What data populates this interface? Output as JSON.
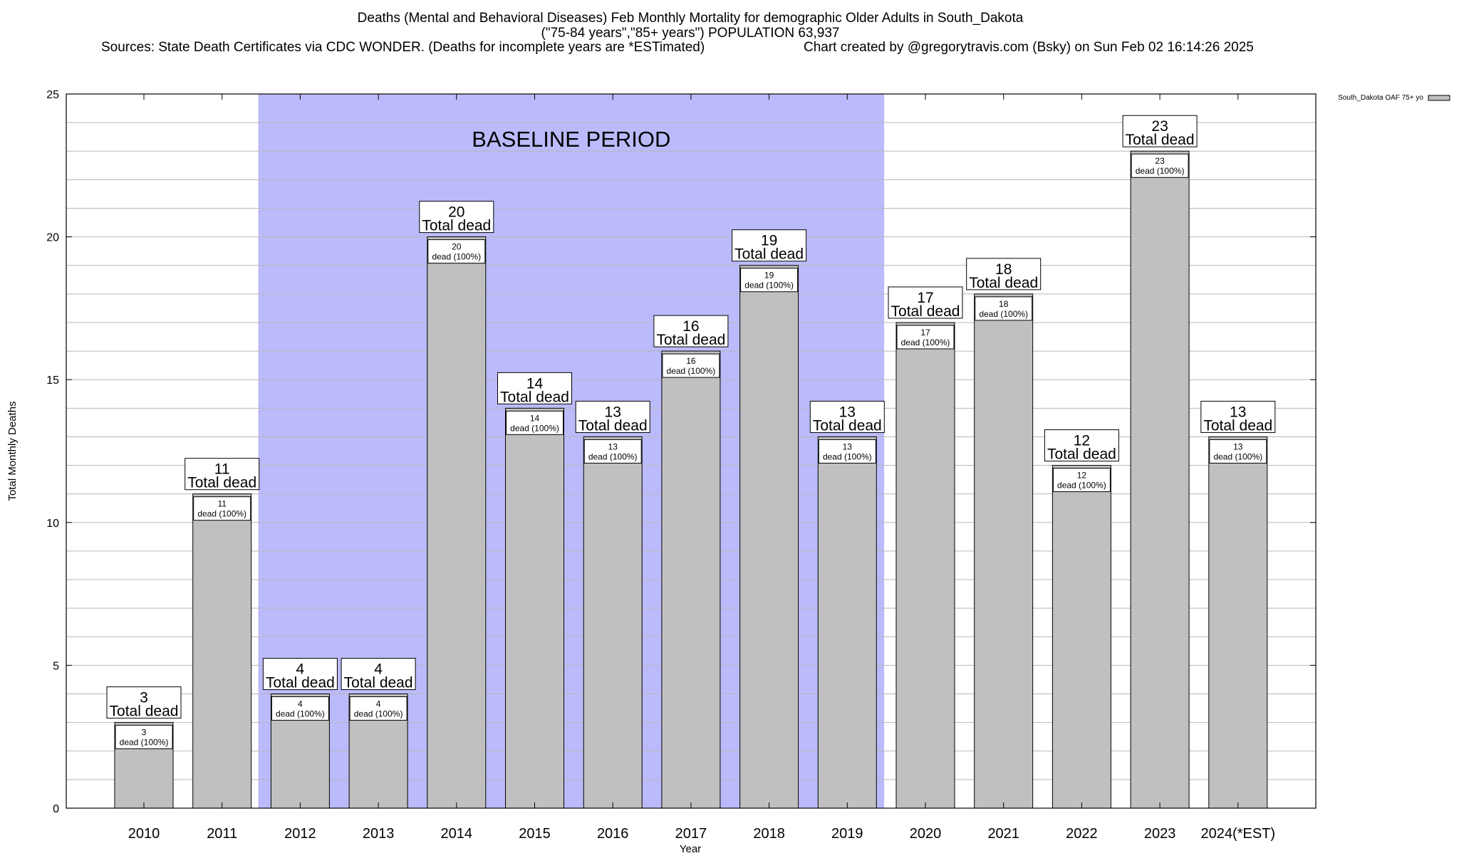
{
  "colors": {
    "bar_fill": "#c0c0c0",
    "baseline_fill": "#bbbbfb",
    "grid": "#b8b8b8",
    "label_box_fill": "#ffffff",
    "legend_swatch": "#c0c0c0"
  },
  "chart_data": {
    "type": "bar",
    "title_line1": "Deaths (Mental and Behavioral Diseases) Feb Monthly Mortality for demographic Older Adults in South_Dakota",
    "title_line2": "(\"75-84 years\",\"85+ years\") POPULATION 63,937",
    "title_line3_left": "Sources: State Death Certificates via CDC WONDER. (Deaths for incomplete years are *ESTimated)",
    "title_line3_right": "Chart created by @gregorytravis.com (Bsky) on Sun Feb 02 16:14:26 2025",
    "xlabel": "Year",
    "ylabel": "Total Monthly Deaths",
    "ylim": [
      0,
      25
    ],
    "yticks": [
      0,
      5,
      10,
      15,
      20,
      25
    ],
    "grid": true,
    "legend_position": "top-right",
    "legend_label": "South_Dakota OAF 75+ yo",
    "categories": [
      "2010",
      "2011",
      "2012",
      "2013",
      "2014",
      "2015",
      "2016",
      "2017",
      "2018",
      "2019",
      "2020",
      "2021",
      "2022",
      "2023",
      "2024(*EST)"
    ],
    "series": [
      {
        "values": [
          3,
          11,
          4,
          4,
          20,
          14,
          13,
          16,
          19,
          13,
          17,
          18,
          12,
          23,
          13
        ]
      }
    ],
    "total_label_suffix": "Total dead",
    "inner_label_suffix": "dead (100%)",
    "baseline": {
      "label": "BASELINE PERIOD",
      "from": "2012",
      "to": "2019"
    }
  }
}
